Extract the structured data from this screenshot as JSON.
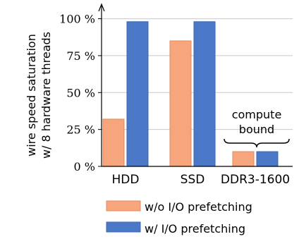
{
  "chart_data": {
    "type": "bar",
    "ylabel_lines": [
      "wire speed saturation",
      "w/ 8 hardware threads"
    ],
    "categories": [
      "HDD",
      "SSD",
      "DDR3-1600"
    ],
    "yticks": [
      0,
      25,
      50,
      75,
      100
    ],
    "ytick_labels": [
      "0 %",
      "25 %",
      "50 %",
      "75 %",
      "100 %"
    ],
    "ylim": [
      0,
      106
    ],
    "grid": true,
    "legend_position": "bottom",
    "series": [
      {
        "name": "w/o I/O prefetching",
        "color": "#f7a57c",
        "values": [
          32,
          85,
          10
        ]
      },
      {
        "name": "w/ I/O prefetching",
        "color": "#4a78c7",
        "values": [
          98,
          98,
          10
        ]
      }
    ],
    "annotation_lines": [
      "compute",
      "bound"
    ]
  }
}
